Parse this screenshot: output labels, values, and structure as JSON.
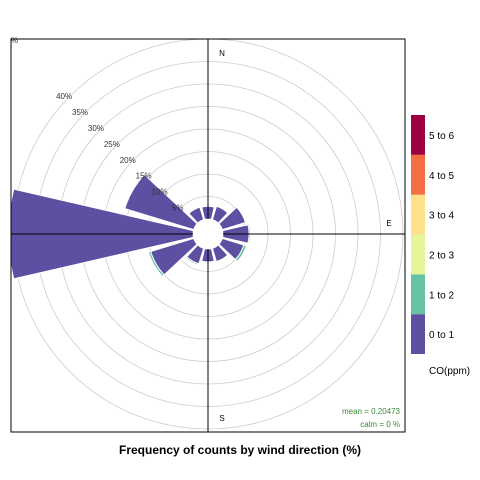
{
  "chart_data": {
    "type": "polar-bar",
    "title": "Frequency of counts by wind direction (%)",
    "directions": [
      "N",
      "E",
      "S"
    ],
    "rlim": [
      0,
      45
    ],
    "radial_ticks": [
      5,
      10,
      15,
      20,
      25,
      30,
      35,
      40
    ],
    "radial_tick_labels": [
      "5%",
      "10%",
      "15%",
      "20%",
      "25%",
      "30%",
      "35%",
      "40%"
    ],
    "top_left_label": "%",
    "grid": true,
    "legend": {
      "title": "CO(ppm)",
      "placement": "right",
      "categories": [
        "0 to 1",
        "1 to 2",
        "2 to 3",
        "3 to 4",
        "4 to 5",
        "5 to 6"
      ],
      "colors": [
        "#5E4FA2",
        "#66C2A5",
        "#E6F598",
        "#FEE08B",
        "#F46D43",
        "#9E0142"
      ]
    },
    "angles_deg": [
      0,
      30,
      60,
      90,
      120,
      150,
      180,
      210,
      240,
      270,
      300,
      330
    ],
    "series": [
      {
        "name": "0 to 1",
        "values": [
          2.8,
          3.1,
          5.4,
          5.8,
          5.0,
          3.1,
          2.9,
          3.6,
          10.0,
          41.0,
          16.0,
          2.9
        ]
      },
      {
        "name": "1 to 2",
        "values": [
          0,
          0,
          0.2,
          0.3,
          0.6,
          0.2,
          0.1,
          0.3,
          0.5,
          0.1,
          0,
          0
        ]
      }
    ],
    "stats": {
      "mean_label": "mean = 0.20473",
      "calm_label": "calm = 0 %"
    }
  }
}
